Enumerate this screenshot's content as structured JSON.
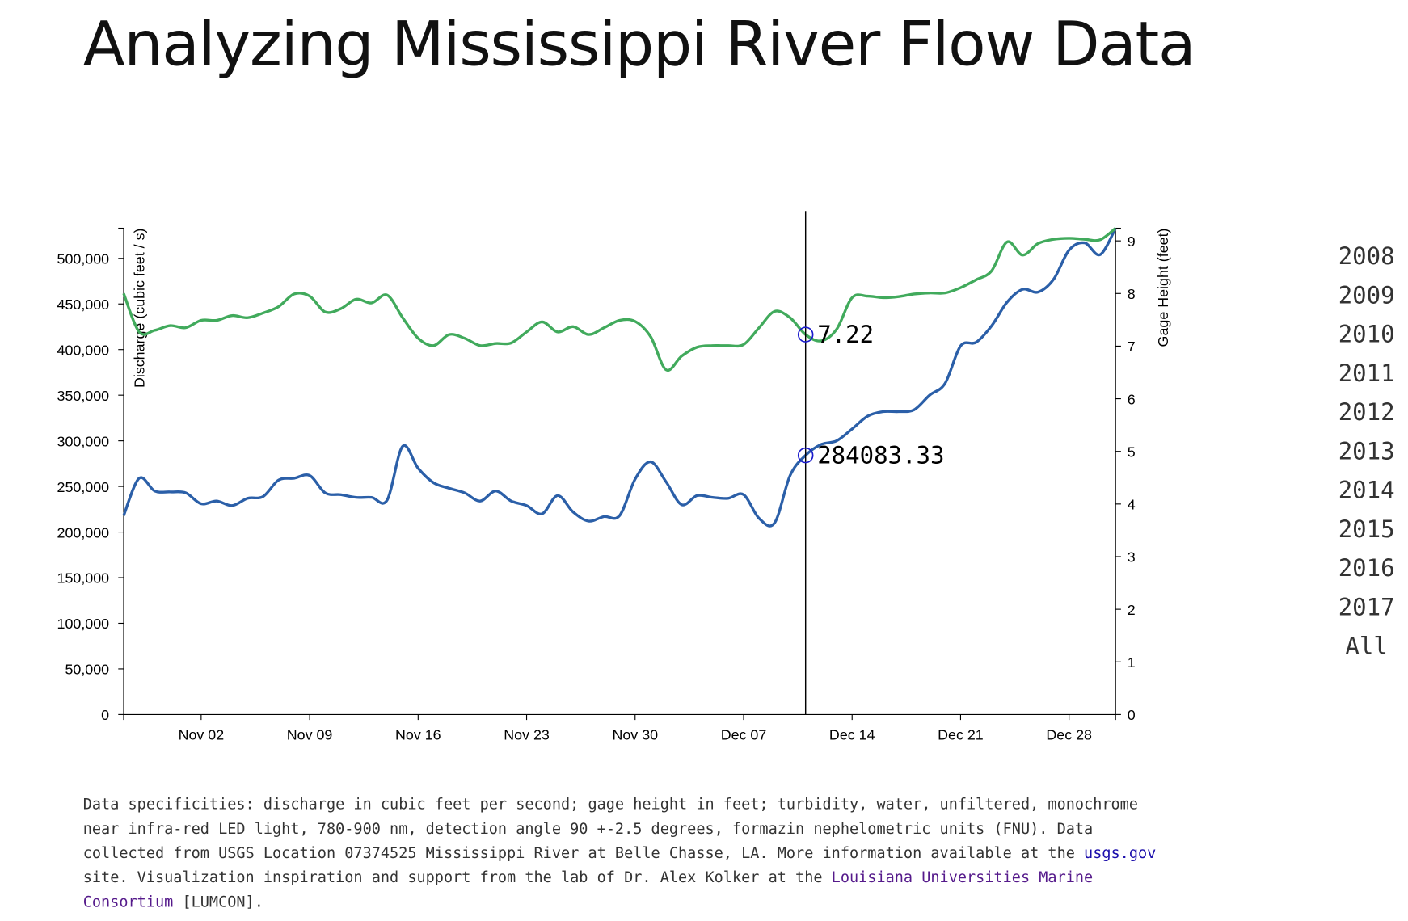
{
  "title": "Analyzing Mississippi River Flow Data",
  "chart_data": {
    "type": "line",
    "x": [
      "Oct 28",
      "Oct 29",
      "Oct 30",
      "Oct 31",
      "Nov 01",
      "Nov 02",
      "Nov 03",
      "Nov 04",
      "Nov 05",
      "Nov 06",
      "Nov 07",
      "Nov 08",
      "Nov 09",
      "Nov 10",
      "Nov 11",
      "Nov 12",
      "Nov 13",
      "Nov 14",
      "Nov 15",
      "Nov 16",
      "Nov 17",
      "Nov 18",
      "Nov 19",
      "Nov 20",
      "Nov 21",
      "Nov 22",
      "Nov 23",
      "Nov 24",
      "Nov 25",
      "Nov 26",
      "Nov 27",
      "Nov 28",
      "Nov 29",
      "Nov 30",
      "Dec 01",
      "Dec 02",
      "Dec 03",
      "Dec 04",
      "Dec 05",
      "Dec 06",
      "Dec 07",
      "Dec 08",
      "Dec 09",
      "Dec 10",
      "Dec 11",
      "Dec 12",
      "Dec 13",
      "Dec 14",
      "Dec 15",
      "Dec 16",
      "Dec 17",
      "Dec 18",
      "Dec 19",
      "Dec 20",
      "Dec 21",
      "Dec 22",
      "Dec 23",
      "Dec 24",
      "Dec 25",
      "Dec 26",
      "Dec 27",
      "Dec 28",
      "Dec 29",
      "Dec 30",
      "Dec 31"
    ],
    "xticks": [
      "Nov 02",
      "Nov 09",
      "Nov 16",
      "Nov 23",
      "Nov 30",
      "Dec 07",
      "Dec 14",
      "Dec 21",
      "Dec 28"
    ],
    "ylabel": "Discharge (cubic feet / s)",
    "y2label": "Gage Height (feet)",
    "ylim": [
      0,
      533000
    ],
    "yticks": [
      0,
      {
        "value": 50000,
        "label": "50,000"
      },
      {
        "value": 100000,
        "label": "100,000"
      },
      {
        "value": 150000,
        "label": "150,000"
      },
      {
        "value": 200000,
        "label": "200,000"
      },
      {
        "value": 250000,
        "label": "250,000"
      },
      {
        "value": 300000,
        "label": "300,000"
      },
      {
        "value": 350000,
        "label": "350,000"
      },
      {
        "value": 400000,
        "label": "400,000"
      },
      {
        "value": 450000,
        "label": "450,000"
      },
      {
        "value": 500000,
        "label": "500,000"
      }
    ],
    "y2lim": [
      0,
      9.24
    ],
    "y2ticks": [
      0,
      1,
      2,
      3,
      4,
      5,
      6,
      7,
      8,
      9
    ],
    "cursor": "Dec 11",
    "series": [
      {
        "color": "#2b5fa8",
        "values": [
          218000,
          259000,
          245000,
          244000,
          243000,
          231000,
          234000,
          229000,
          237000,
          239000,
          257000,
          259000,
          262000,
          243000,
          241000,
          238000,
          238000,
          235000,
          294000,
          270000,
          254000,
          248000,
          243000,
          234000,
          245000,
          234000,
          229000,
          220000,
          240000,
          222000,
          212000,
          217000,
          218000,
          258000,
          277000,
          255000,
          230000,
          240000,
          238000,
          237000,
          241000,
          215000,
          210000,
          262000,
          284083.33,
          296000,
          300000,
          313000,
          327000,
          332000,
          332000,
          334000,
          350000,
          363000,
          404000,
          408000,
          426000,
          452000,
          466000,
          463000,
          477000,
          509000,
          517000,
          504000,
          533000
        ]
      },
      {
        "color": "#41aa5c",
        "axis": "y2",
        "values": [
          8.0,
          7.27,
          7.3,
          7.39,
          7.35,
          7.49,
          7.49,
          7.58,
          7.54,
          7.63,
          7.75,
          7.99,
          7.95,
          7.65,
          7.71,
          7.89,
          7.82,
          7.97,
          7.54,
          7.15,
          7.01,
          7.22,
          7.15,
          7.01,
          7.05,
          7.06,
          7.27,
          7.46,
          7.27,
          7.37,
          7.22,
          7.35,
          7.49,
          7.47,
          7.18,
          6.55,
          6.81,
          6.98,
          7.01,
          7.01,
          7.03,
          7.35,
          7.66,
          7.54,
          7.22,
          7.1,
          7.32,
          7.92,
          7.95,
          7.92,
          7.94,
          7.99,
          8.01,
          8.01,
          8.11,
          8.26,
          8.43,
          8.98,
          8.73,
          8.95,
          9.03,
          9.05,
          9.03,
          9.02,
          9.24
        ]
      }
    ]
  },
  "year_menu": [
    "2008",
    "2009",
    "2010",
    "2011",
    "2012",
    "2013",
    "2014",
    "2015",
    "2016",
    "2017",
    "All"
  ],
  "footer": {
    "text_1": "Data specificities: discharge in cubic feet per second; gage height in feet; turbidity, water, unfiltered, monochrome near infra-red LED light, 780-900 nm, detection angle 90 +-2.5 degrees, formazin nephelometric units (FNU). Data collected from USGS Location 07374525 Mississippi River at Belle Chasse, LA. More information available at the ",
    "link_1": "usgs.gov",
    "text_2": " site. Visualization inspiration and support from the lab of Dr. Alex Kolker at the ",
    "link_2": "Louisiana Universities Marine Consortium",
    "text_3": " [LUMCON]."
  }
}
